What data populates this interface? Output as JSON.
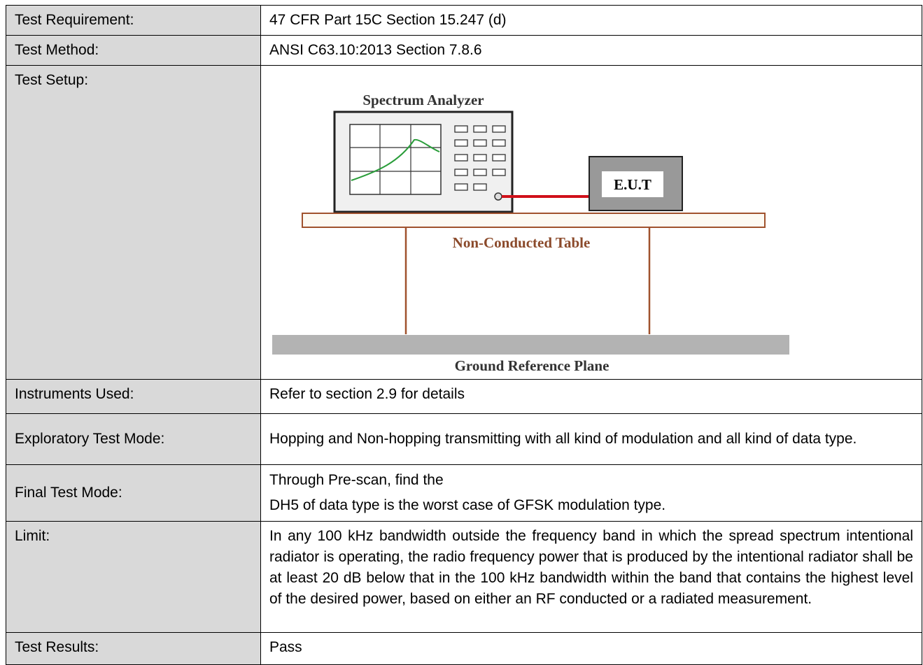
{
  "rows": [
    {
      "label": "Test Requirement:",
      "paragraphs": [
        "47 CFR Part 15C Section 15.247 (d)"
      ]
    },
    {
      "label": "Test Method:",
      "paragraphs": [
        "ANSI C63.10:2013 Section 7.8.6"
      ]
    },
    {
      "label": "Test Setup:",
      "diagram": {
        "analyzer": "Spectrum Analyzer",
        "eut": "E.U.T",
        "table": "Non-Conducted Table",
        "ground": "Ground Reference Plane"
      }
    },
    {
      "label": "Instruments Used:",
      "paragraphs": [
        "Refer to section 2.9 for details"
      ]
    },
    {
      "label": "Exploratory Test Mode:",
      "paragraphs": [
        "Hopping and Non-hopping transmitting with all kind of modulation and all kind of data type."
      ]
    },
    {
      "label": "Final Test Mode:",
      "paragraphs": [
        "Through Pre-scan, find the",
        "DH5 of data type is the worst case of GFSK modulation type."
      ]
    },
    {
      "label": "Limit:",
      "paragraphs": [
        "In any 100 kHz bandwidth outside the frequency band in which the spread spectrum intentional radiator is operating, the radio frequency power that is produced by the intentional radiator shall be at least 20 dB below that in the 100 kHz bandwidth within the band that contains the highest level of the desired power, based on either an RF conducted or a radiated measurement."
      ]
    },
    {
      "label": "Test Results:",
      "paragraphs": [
        "Pass"
      ]
    }
  ]
}
